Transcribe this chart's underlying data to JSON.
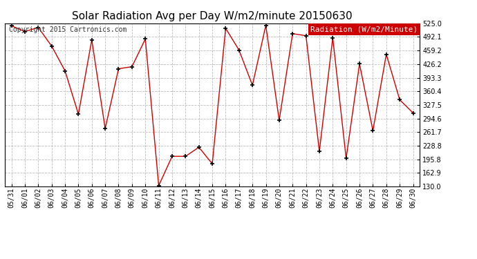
{
  "title": "Solar Radiation Avg per Day W/m2/minute 20150630",
  "copyright": "Copyright 2015 Cartronics.com",
  "legend_label": "Radiation (W/m2/Minute)",
  "dates": [
    "05/31",
    "06/01",
    "06/02",
    "06/03",
    "06/04",
    "06/05",
    "06/06",
    "06/07",
    "06/08",
    "06/09",
    "06/10",
    "06/11",
    "06/12",
    "06/13",
    "06/14",
    "06/15",
    "06/16",
    "06/17",
    "06/18",
    "06/19",
    "06/20",
    "06/21",
    "06/22",
    "06/23",
    "06/24",
    "06/25",
    "06/26",
    "06/27",
    "06/28",
    "06/29",
    "06/30"
  ],
  "values": [
    519,
    505,
    515,
    470,
    410,
    305,
    485,
    270,
    415,
    420,
    487,
    132,
    203,
    203,
    225,
    185,
    513,
    460,
    375,
    520,
    290,
    500,
    495,
    215,
    490,
    198,
    427,
    265,
    450,
    340,
    308
  ],
  "ylim": [
    130,
    525
  ],
  "yticks": [
    130.0,
    162.9,
    195.8,
    228.8,
    261.7,
    294.6,
    327.5,
    360.4,
    393.3,
    426.2,
    459.2,
    492.1,
    525.0
  ],
  "line_color": "#cc0000",
  "marker_color": "#000000",
  "bg_color": "#ffffff",
  "grid_color": "#bbbbbb",
  "legend_bg": "#cc0000",
  "legend_text_color": "#ffffff",
  "title_fontsize": 11,
  "copyright_fontsize": 7,
  "tick_fontsize": 7,
  "legend_fontsize": 8
}
